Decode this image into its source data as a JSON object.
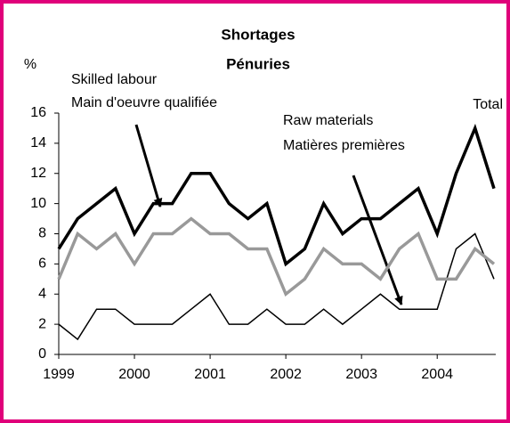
{
  "chart_data": {
    "type": "line",
    "title": "Shortages",
    "subtitle": "Pénuries",
    "y_label": "%",
    "x": [
      1999,
      1999.25,
      1999.5,
      1999.75,
      2000,
      2000.25,
      2000.5,
      2000.75,
      2001,
      2001.25,
      2001.5,
      2001.75,
      2002,
      2002.25,
      2002.5,
      2002.75,
      2003,
      2003.25,
      2003.5,
      2003.75,
      2004,
      2004.25,
      2004.5,
      2004.75
    ],
    "xlim": [
      1999,
      2004.75
    ],
    "xticks": [
      1999,
      2000,
      2001,
      2002,
      2003,
      2004
    ],
    "ylim": [
      0,
      16
    ],
    "yticks": [
      0,
      2,
      4,
      6,
      8,
      10,
      12,
      14,
      16
    ],
    "grid": false,
    "series": [
      {
        "name": "Total",
        "color": "#000000",
        "values": [
          7,
          9,
          10,
          11,
          8,
          10,
          10,
          12,
          12,
          10,
          9,
          10,
          6,
          7,
          10,
          8,
          9,
          9,
          10,
          11,
          8,
          12,
          15,
          11
        ]
      },
      {
        "name": "Skilled labour",
        "name2": "Main d'oeuvre qualifiée",
        "color": "#999999",
        "values": [
          5,
          8,
          7,
          8,
          6,
          8,
          8,
          9,
          8,
          8,
          7,
          7,
          4,
          5,
          7,
          6,
          6,
          5,
          7,
          8,
          5,
          5,
          7,
          6
        ]
      },
      {
        "name": "Raw materials",
        "name2": "Matières premières",
        "color": "#000000",
        "values": [
          2,
          1,
          3,
          3,
          2,
          2,
          2,
          3,
          4,
          2,
          2,
          3,
          2,
          2,
          3,
          2,
          3,
          4,
          3,
          3,
          3,
          7,
          8,
          5
        ]
      }
    ]
  }
}
